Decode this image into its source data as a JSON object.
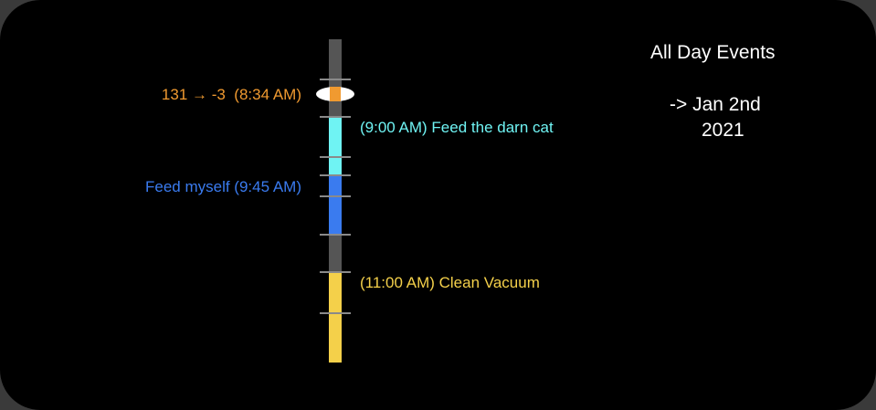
{
  "events": [
    {
      "label": "131 → -3  (8:34 AM)"
    },
    {
      "label": "(9:00 AM) Feed the darn cat"
    },
    {
      "label": "Feed myself (9:45 AM)"
    },
    {
      "label": "(11:00 AM) Clean Vacuum"
    }
  ],
  "all_day": {
    "title": "All Day Events",
    "line1": "-> Jan 2nd",
    "line2": "2021"
  }
}
